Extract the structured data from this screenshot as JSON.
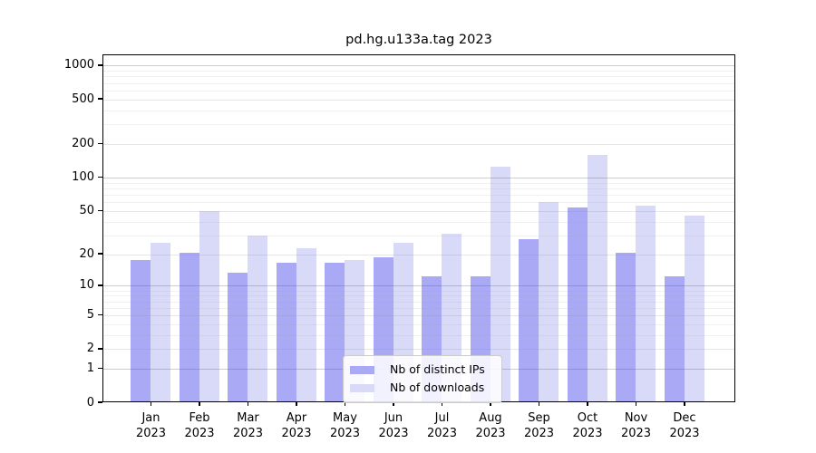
{
  "title": "pd.hg.u133a.tag 2023",
  "legend": {
    "items": [
      {
        "label": "Nb of distinct IPs",
        "color": "#a9a9f6"
      },
      {
        "label": "Nb of downloads",
        "color": "#d9d9f8"
      }
    ]
  },
  "chart_data": {
    "type": "bar",
    "title": "pd.hg.u133a.tag 2023",
    "categories": [
      "Jan",
      "Feb",
      "Mar",
      "Apr",
      "May",
      "Jun",
      "Jul",
      "Aug",
      "Sep",
      "Oct",
      "Nov",
      "Dec"
    ],
    "x_tick_second_line": "2023",
    "series": [
      {
        "name": "Nb of distinct IPs",
        "color": "#a9a9f6",
        "values": [
          17,
          20,
          13,
          16,
          16,
          18,
          12,
          12,
          27,
          52,
          20,
          12
        ]
      },
      {
        "name": "Nb of downloads",
        "color": "#d9d9f8",
        "values": [
          25,
          48,
          29,
          22,
          17,
          25,
          30,
          122,
          58,
          155,
          54,
          44
        ]
      }
    ],
    "y_axis": {
      "scale": "log1p",
      "tick_values": [
        1000,
        500,
        200,
        100,
        50,
        20,
        10,
        5,
        2,
        1,
        0
      ],
      "tick_labels": [
        "1000",
        "500",
        "200",
        "100",
        "50",
        "20",
        "10",
        "5",
        "2",
        "1",
        "0"
      ],
      "minor_tick_multiples": [
        3,
        4,
        6,
        7,
        8,
        9
      ],
      "mid_tick_multiples": [
        2,
        5
      ],
      "range": [
        0,
        1000
      ],
      "grid": true
    },
    "legend_position": "inside-bottom-center"
  }
}
